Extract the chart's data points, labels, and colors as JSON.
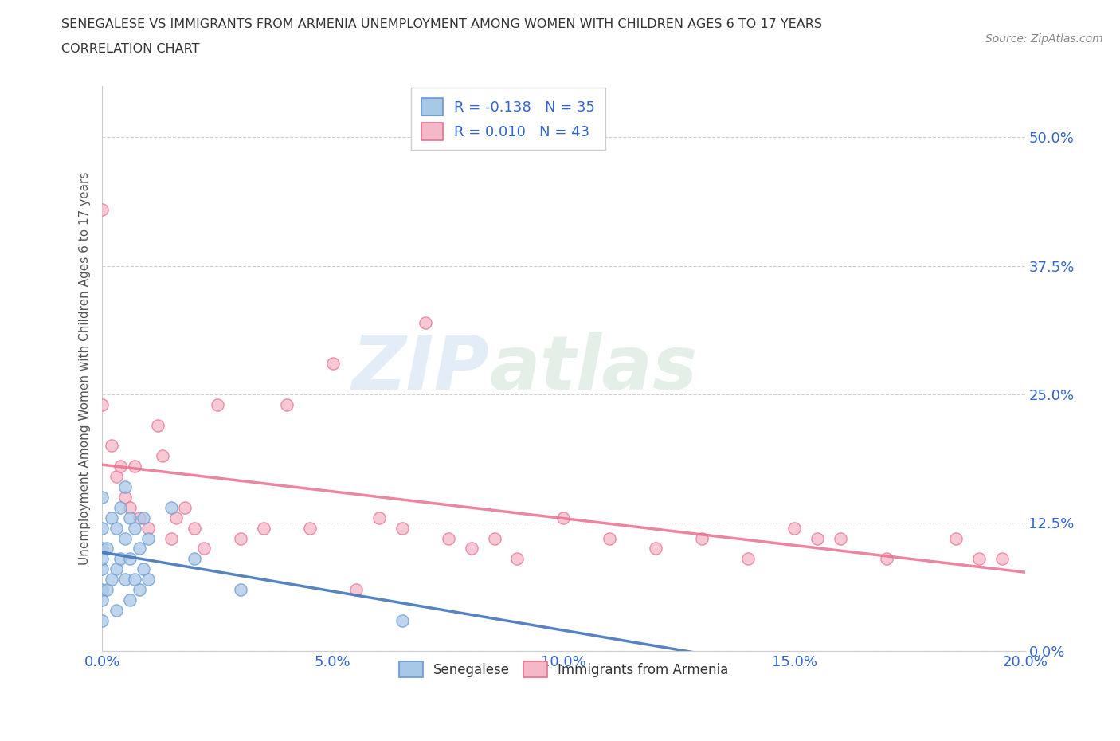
{
  "title_line1": "SENEGALESE VS IMMIGRANTS FROM ARMENIA UNEMPLOYMENT AMONG WOMEN WITH CHILDREN AGES 6 TO 17 YEARS",
  "title_line2": "CORRELATION CHART",
  "source_text": "Source: ZipAtlas.com",
  "ylabel": "Unemployment Among Women with Children Ages 6 to 17 years",
  "watermark_zip": "ZIP",
  "watermark_atlas": "atlas",
  "xlim": [
    0.0,
    0.2
  ],
  "ylim": [
    0.0,
    0.55
  ],
  "yticks": [
    0.0,
    0.125,
    0.25,
    0.375,
    0.5
  ],
  "ytick_labels": [
    "0.0%",
    "12.5%",
    "25.0%",
    "37.5%",
    "50.0%"
  ],
  "xticks": [
    0.0,
    0.05,
    0.1,
    0.15,
    0.2
  ],
  "xtick_labels": [
    "0.0%",
    "5.0%",
    "10.0%",
    "15.0%",
    "20.0%"
  ],
  "blue_R": -0.138,
  "blue_N": 35,
  "pink_R": 0.01,
  "pink_N": 43,
  "legend_label_blue": "Senegalese",
  "legend_label_pink": "Immigrants from Armenia",
  "blue_fill": "#a8c8e8",
  "pink_fill": "#f4b8c8",
  "blue_edge": "#6699cc",
  "pink_edge": "#e87090",
  "trend_blue_color": "#4477bb",
  "trend_pink_color": "#e87090",
  "blue_scatter_x": [
    0.0,
    0.0,
    0.0,
    0.0,
    0.0,
    0.0,
    0.0,
    0.0,
    0.001,
    0.001,
    0.002,
    0.002,
    0.003,
    0.003,
    0.003,
    0.004,
    0.004,
    0.005,
    0.005,
    0.005,
    0.006,
    0.006,
    0.006,
    0.007,
    0.007,
    0.008,
    0.008,
    0.009,
    0.009,
    0.01,
    0.01,
    0.015,
    0.02,
    0.03,
    0.065
  ],
  "blue_scatter_y": [
    0.03,
    0.05,
    0.06,
    0.08,
    0.09,
    0.1,
    0.12,
    0.15,
    0.06,
    0.1,
    0.07,
    0.13,
    0.04,
    0.08,
    0.12,
    0.09,
    0.14,
    0.07,
    0.11,
    0.16,
    0.05,
    0.09,
    0.13,
    0.07,
    0.12,
    0.06,
    0.1,
    0.08,
    0.13,
    0.07,
    0.11,
    0.14,
    0.09,
    0.06,
    0.03
  ],
  "pink_scatter_x": [
    0.0,
    0.0,
    0.002,
    0.003,
    0.004,
    0.005,
    0.006,
    0.007,
    0.008,
    0.01,
    0.012,
    0.013,
    0.015,
    0.016,
    0.018,
    0.02,
    0.022,
    0.025,
    0.03,
    0.035,
    0.04,
    0.045,
    0.05,
    0.055,
    0.06,
    0.065,
    0.07,
    0.075,
    0.08,
    0.085,
    0.09,
    0.1,
    0.11,
    0.12,
    0.13,
    0.14,
    0.15,
    0.155,
    0.16,
    0.17,
    0.185,
    0.19,
    0.195
  ],
  "pink_scatter_y": [
    0.43,
    0.24,
    0.2,
    0.17,
    0.18,
    0.15,
    0.14,
    0.18,
    0.13,
    0.12,
    0.22,
    0.19,
    0.11,
    0.13,
    0.14,
    0.12,
    0.1,
    0.24,
    0.11,
    0.12,
    0.24,
    0.12,
    0.28,
    0.06,
    0.13,
    0.12,
    0.32,
    0.11,
    0.1,
    0.11,
    0.09,
    0.13,
    0.11,
    0.1,
    0.11,
    0.09,
    0.12,
    0.11,
    0.11,
    0.09,
    0.11,
    0.09,
    0.09
  ],
  "background_color": "#ffffff",
  "grid_color": "#bbbbbb",
  "title_color": "#333333",
  "axis_label_color": "#555555",
  "tick_label_color": "#3366cc",
  "source_color": "#888888"
}
